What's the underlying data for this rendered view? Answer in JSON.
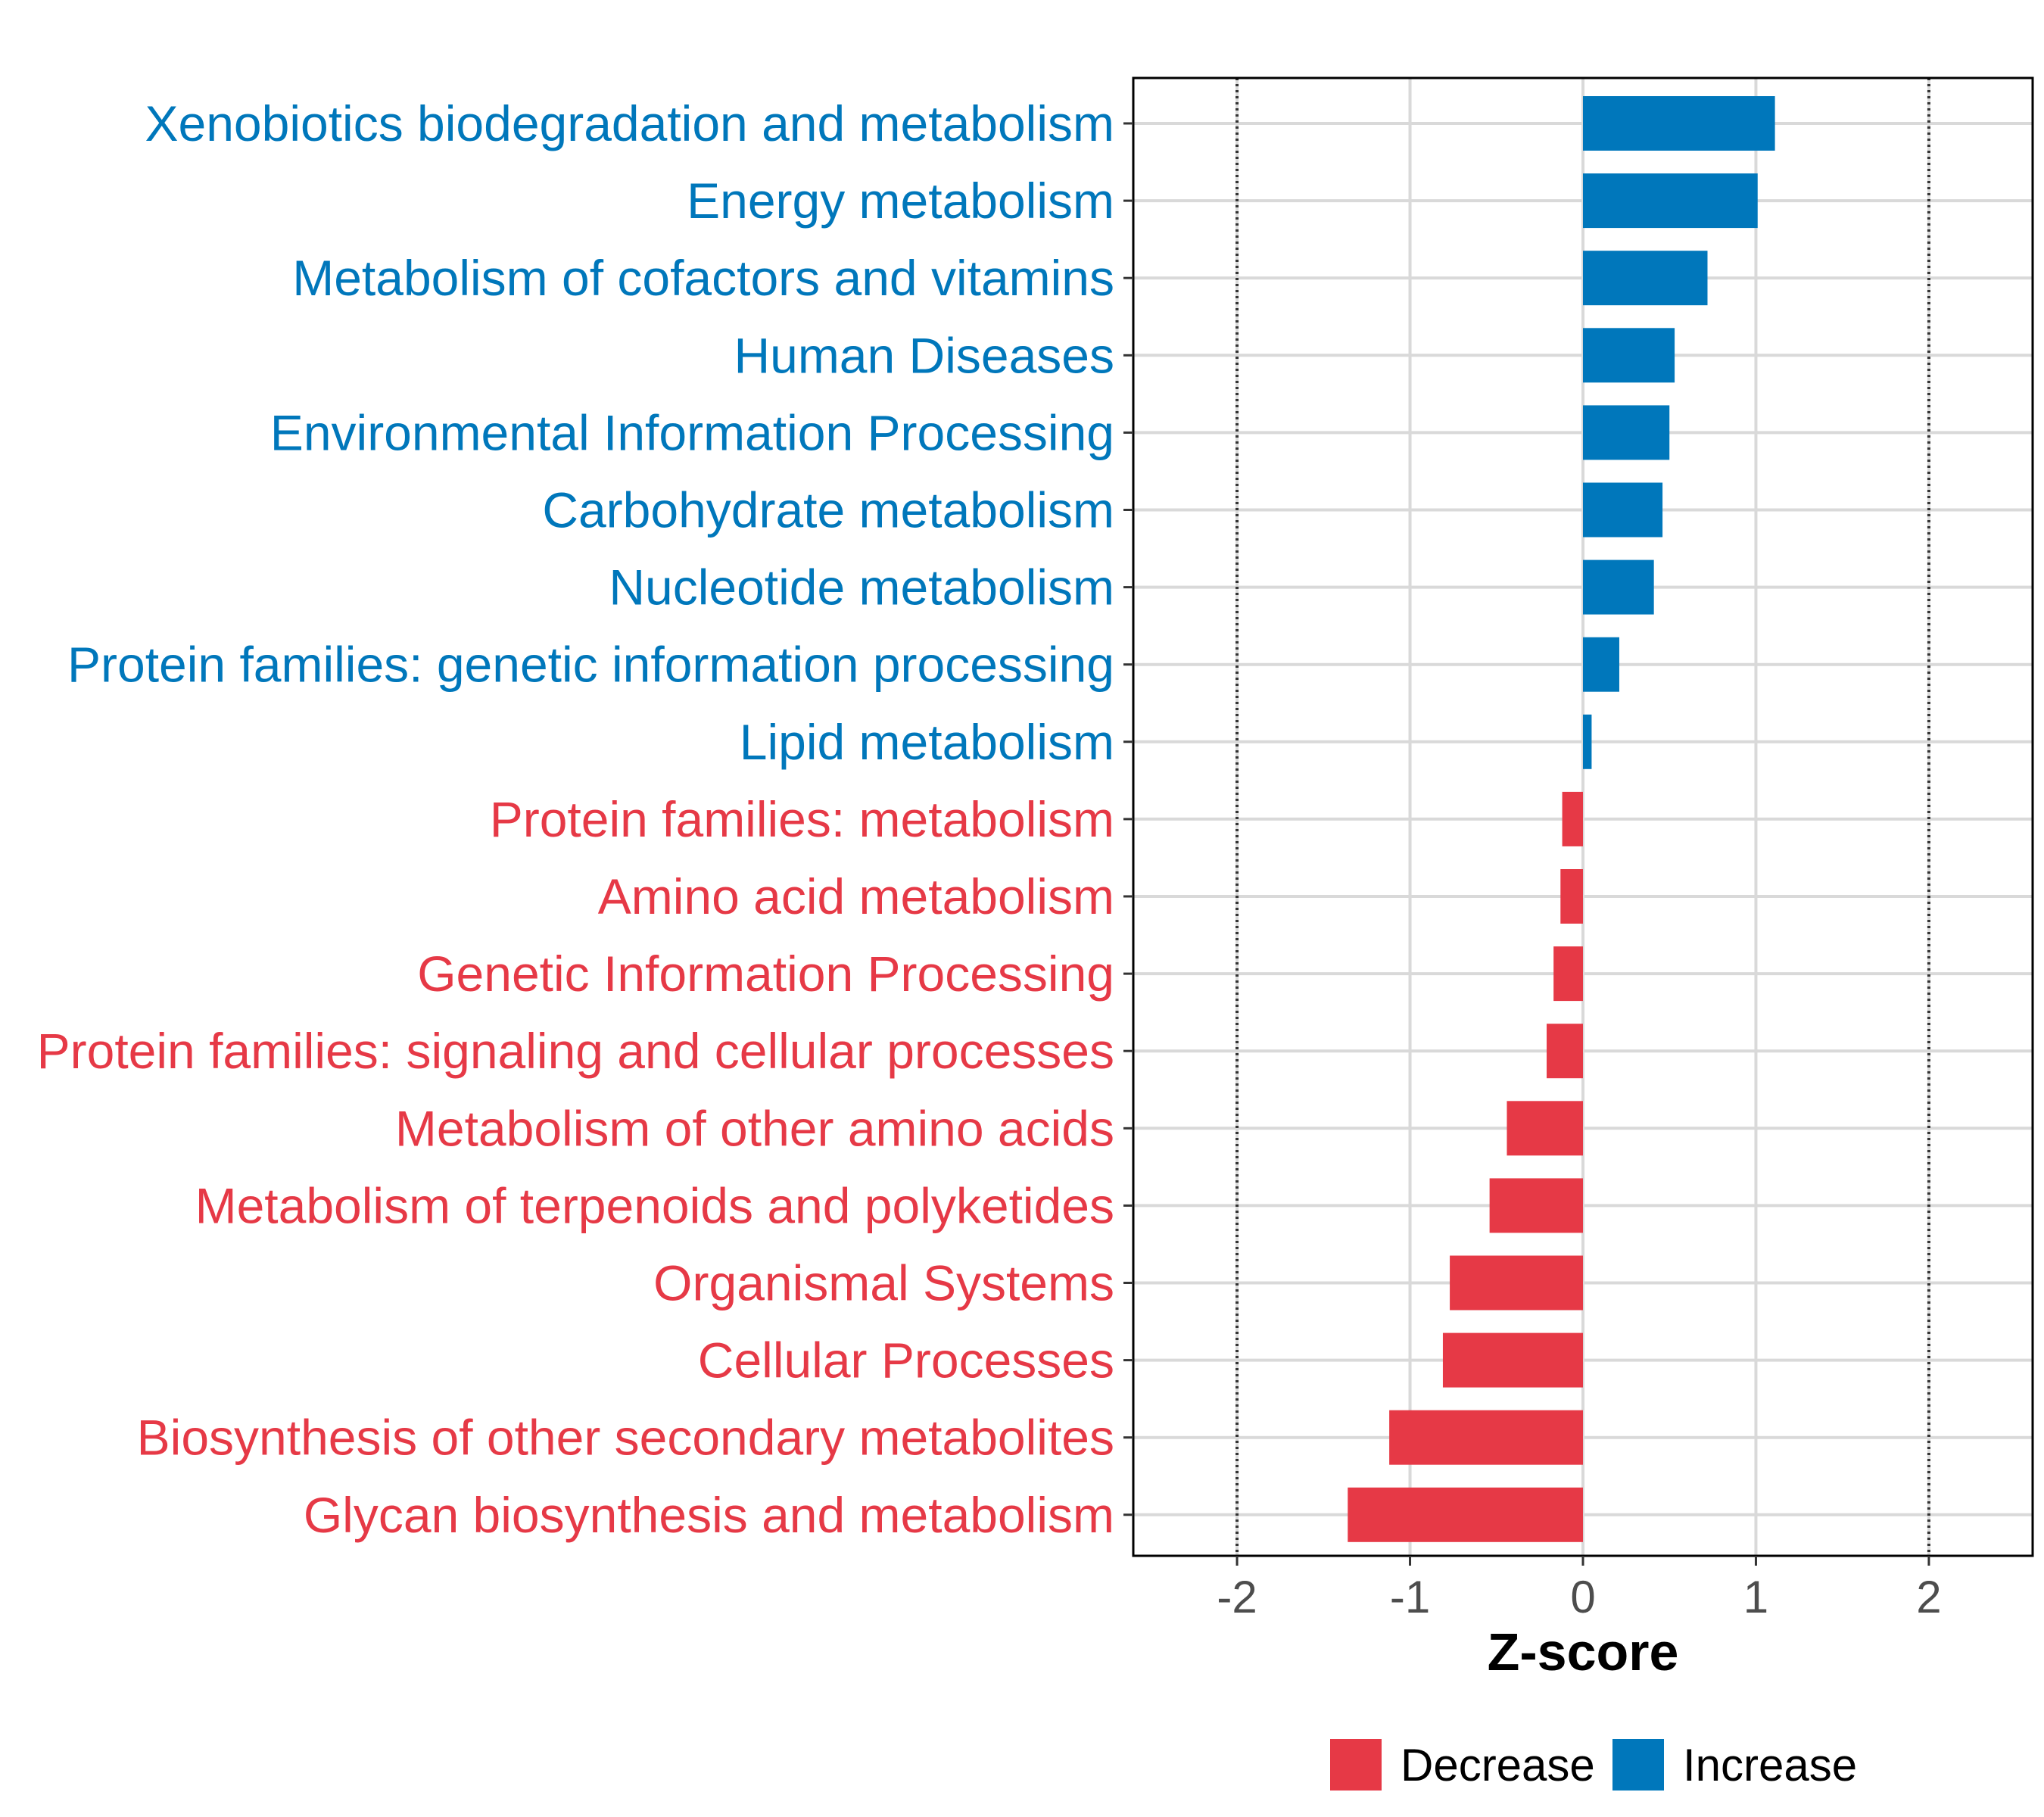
{
  "chart_data": {
    "type": "bar",
    "orientation": "horizontal",
    "title": "",
    "xlabel": "Z-score",
    "ylabel": "",
    "xlim": [
      -2.6,
      2.6
    ],
    "xticks": [
      -2,
      -1,
      0,
      1,
      2
    ],
    "xtick_labels": [
      "-2",
      "-1",
      "0",
      "1",
      "2"
    ],
    "reference_lines": [
      -2,
      2
    ],
    "grid": true,
    "categories": [
      "Xenobiotics biodegradation and metabolism",
      "Energy metabolism",
      "Metabolism of cofactors and vitamins",
      "Human Diseases",
      "Environmental Information Processing",
      "Carbohydrate metabolism",
      "Nucleotide metabolism",
      "Protein families: genetic information processing",
      "Lipid metabolism",
      "Protein families: metabolism",
      "Amino acid metabolism",
      "Genetic Information Processing",
      "Protein families: signaling and cellular processes",
      "Metabolism of other amino acids",
      "Metabolism of terpenoids and polyketides",
      "Organismal Systems",
      "Cellular Processes",
      "Biosynthesis of other secondary metabolites",
      "Glycan biosynthesis and metabolism"
    ],
    "values": [
      1.11,
      1.01,
      0.72,
      0.53,
      0.5,
      0.46,
      0.41,
      0.21,
      0.05,
      -0.12,
      -0.13,
      -0.17,
      -0.21,
      -0.44,
      -0.54,
      -0.77,
      -0.81,
      -1.12,
      -1.36
    ],
    "groups": [
      "Increase",
      "Increase",
      "Increase",
      "Increase",
      "Increase",
      "Increase",
      "Increase",
      "Increase",
      "Increase",
      "Decrease",
      "Decrease",
      "Decrease",
      "Decrease",
      "Decrease",
      "Decrease",
      "Decrease",
      "Decrease",
      "Decrease",
      "Decrease"
    ],
    "legend": {
      "position": "bottom",
      "entries": [
        {
          "label": "Decrease",
          "color": "#E63946"
        },
        {
          "label": "Increase",
          "color": "#0077BB"
        }
      ]
    },
    "colors": {
      "Decrease": "#E63946",
      "Increase": "#0077BB"
    }
  }
}
